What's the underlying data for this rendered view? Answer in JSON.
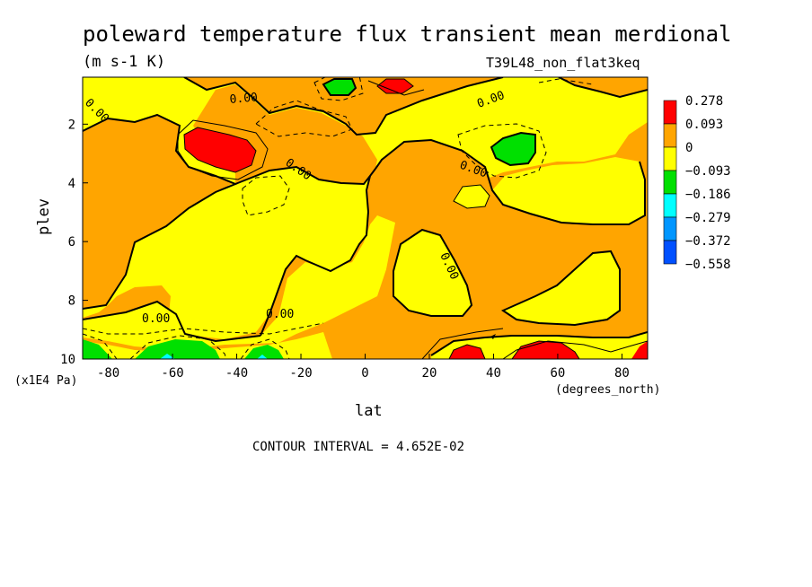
{
  "chart_data": {
    "type": "heatmap",
    "title": "poleward temperature flux transient mean merdional",
    "units": "(m s-1 K)",
    "dataset": "T39L48_non_flat3keq",
    "xlabel": "lat",
    "x_units": "(degrees_north)",
    "ylabel": "plev",
    "y_units": "(x1E4 Pa)",
    "xlim": [
      -88,
      88
    ],
    "ylim": [
      10,
      0.4
    ],
    "x_ticks": [
      "-80",
      "-60",
      "-40",
      "-20",
      "0",
      "20",
      "40",
      "60",
      "80"
    ],
    "y_ticks": [
      "2",
      "4",
      "6",
      "8",
      "10"
    ],
    "contour_interval": "CONTOUR INTERVAL = 4.652E-02",
    "contour_label": "0.00",
    "levels": [
      {
        "label": "0.278",
        "color": "#ff0000"
      },
      {
        "label": "0.093",
        "color": "#ffa500"
      },
      {
        "label": "0",
        "color": "#ffff00"
      },
      {
        "label": "−0.093",
        "color": "#00e000"
      },
      {
        "label": "−0.186",
        "color": "#00ffff"
      },
      {
        "label": "−0.279",
        "color": "#0096ff"
      },
      {
        "label": "−0.372",
        "color": "#0050ff"
      },
      {
        "label": "−0.558",
        "color": ""
      }
    ],
    "colors": {
      "positive_fill": "#ffa500",
      "near_zero_fill": "#ffff00",
      "strong_positive": "#ff0000",
      "negative_fill": "#00e000",
      "strong_negative": "#00ffff"
    },
    "grid": false,
    "legend": "right"
  }
}
